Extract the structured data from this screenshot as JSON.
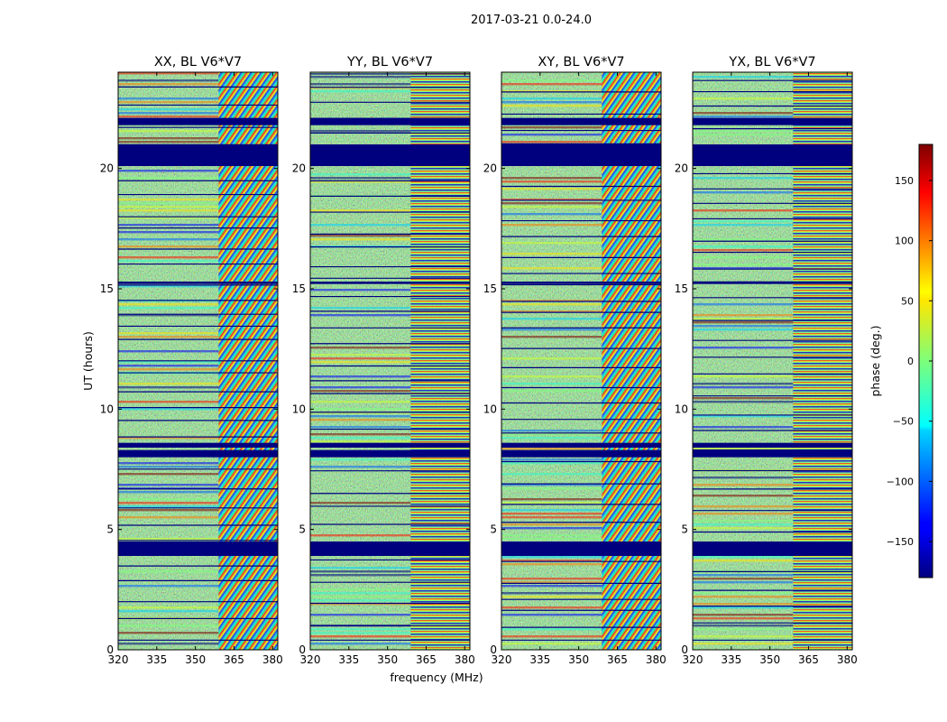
{
  "chart_data": {
    "type": "heatmap",
    "suptitle": "2017-03-21 0.0-24.0",
    "xlabel": "frequency (MHz)",
    "ylabel": "UT (hours)",
    "xlim": [
      320,
      382
    ],
    "ylim": [
      0,
      24
    ],
    "xticks": [
      "320",
      "335",
      "350",
      "365",
      "380"
    ],
    "xtick_values": [
      320,
      335,
      350,
      365,
      380
    ],
    "yticks": [
      "0",
      "5",
      "10",
      "15",
      "20"
    ],
    "ytick_values": [
      0,
      5,
      10,
      15,
      20
    ],
    "panels": [
      {
        "title": "XX, BL V6*V7"
      },
      {
        "title": "YY, BL V6*V7"
      },
      {
        "title": "XY, BL V6*V7"
      },
      {
        "title": "YX, BL V6*V7"
      }
    ],
    "colorbar": {
      "label": "phase (deg.)",
      "range": [
        -180,
        180
      ],
      "ticks": [
        "150",
        "100",
        "50",
        "0",
        "−50",
        "−100",
        "−150"
      ],
      "tick_values": [
        150,
        100,
        50,
        0,
        -50,
        -100,
        -150
      ],
      "colormap": "jet"
    },
    "flagged_ut_bands": [
      [
        3.9,
        4.5
      ],
      [
        20.1,
        21.0
      ],
      [
        21.8,
        22.1
      ],
      [
        8.0,
        8.3
      ],
      [
        8.4,
        8.6
      ],
      [
        15.2,
        15.3
      ]
    ],
    "fringe_frequency_start_mhz": 359
  }
}
